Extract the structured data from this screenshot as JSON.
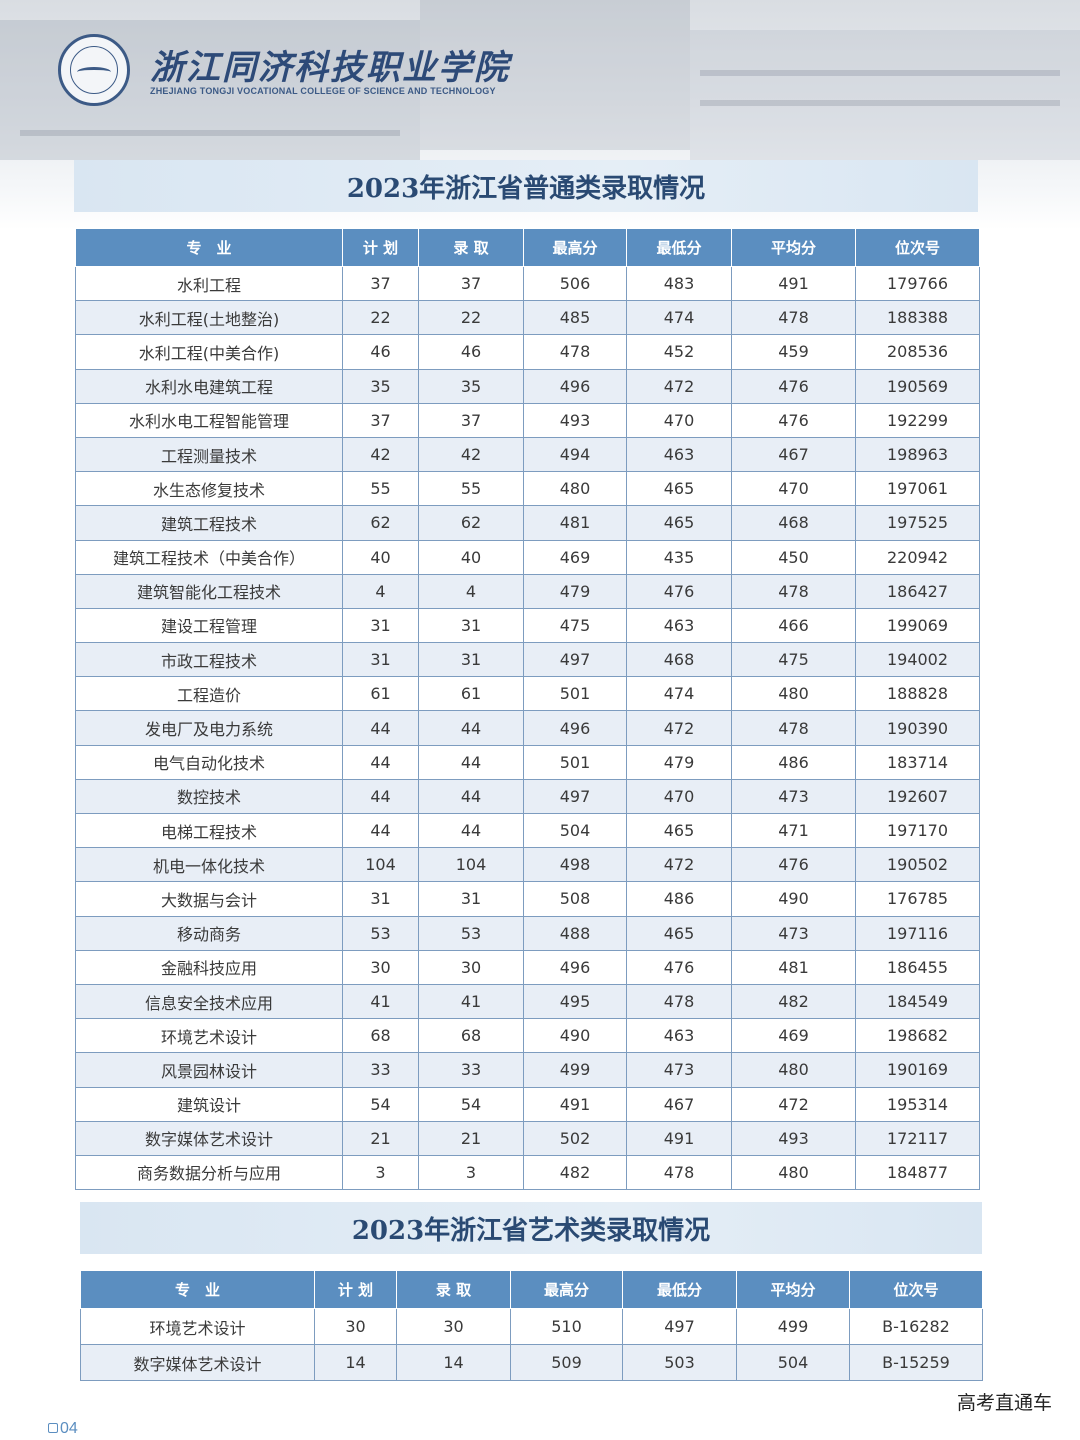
{
  "logo": {
    "name_cn": "浙江同济科技职业学院",
    "name_en": "ZHEJIANG TONGJI VOCATIONAL COLLEGE OF SCIENCE AND TECHNOLOGY"
  },
  "section1": {
    "title": "2023年浙江省普通类录取情况",
    "headers": [
      "专　业",
      "计 划",
      "录 取",
      "最高分",
      "最低分",
      "平均分",
      "位次号"
    ],
    "rows": [
      [
        "水利工程",
        "37",
        "37",
        "506",
        "483",
        "491",
        "179766"
      ],
      [
        "水利工程(土地整治)",
        "22",
        "22",
        "485",
        "474",
        "478",
        "188388"
      ],
      [
        "水利工程(中美合作)",
        "46",
        "46",
        "478",
        "452",
        "459",
        "208536"
      ],
      [
        "水利水电建筑工程",
        "35",
        "35",
        "496",
        "472",
        "476",
        "190569"
      ],
      [
        "水利水电工程智能管理",
        "37",
        "37",
        "493",
        "470",
        "476",
        "192299"
      ],
      [
        "工程测量技术",
        "42",
        "42",
        "494",
        "463",
        "467",
        "198963"
      ],
      [
        "水生态修复技术",
        "55",
        "55",
        "480",
        "465",
        "470",
        "197061"
      ],
      [
        "建筑工程技术",
        "62",
        "62",
        "481",
        "465",
        "468",
        "197525"
      ],
      [
        "建筑工程技术（中美合作）",
        "40",
        "40",
        "469",
        "435",
        "450",
        "220942"
      ],
      [
        "建筑智能化工程技术",
        "4",
        "4",
        "479",
        "476",
        "478",
        "186427"
      ],
      [
        "建设工程管理",
        "31",
        "31",
        "475",
        "463",
        "466",
        "199069"
      ],
      [
        "市政工程技术",
        "31",
        "31",
        "497",
        "468",
        "475",
        "194002"
      ],
      [
        "工程造价",
        "61",
        "61",
        "501",
        "474",
        "480",
        "188828"
      ],
      [
        "发电厂及电力系统",
        "44",
        "44",
        "496",
        "472",
        "478",
        "190390"
      ],
      [
        "电气自动化技术",
        "44",
        "44",
        "501",
        "479",
        "486",
        "183714"
      ],
      [
        "数控技术",
        "44",
        "44",
        "497",
        "470",
        "473",
        "192607"
      ],
      [
        "电梯工程技术",
        "44",
        "44",
        "504",
        "465",
        "471",
        "197170"
      ],
      [
        "机电一体化技术",
        "104",
        "104",
        "498",
        "472",
        "476",
        "190502"
      ],
      [
        "大数据与会计",
        "31",
        "31",
        "508",
        "486",
        "490",
        "176785"
      ],
      [
        "移动商务",
        "53",
        "53",
        "488",
        "465",
        "473",
        "197116"
      ],
      [
        "金融科技应用",
        "30",
        "30",
        "496",
        "476",
        "481",
        "186455"
      ],
      [
        "信息安全技术应用",
        "41",
        "41",
        "495",
        "478",
        "482",
        "184549"
      ],
      [
        "环境艺术设计",
        "68",
        "68",
        "490",
        "463",
        "469",
        "198682"
      ],
      [
        "风景园林设计",
        "33",
        "33",
        "499",
        "473",
        "480",
        "190169"
      ],
      [
        "建筑设计",
        "54",
        "54",
        "491",
        "467",
        "472",
        "195314"
      ],
      [
        "数字媒体艺术设计",
        "21",
        "21",
        "502",
        "491",
        "493",
        "172117"
      ],
      [
        "商务数据分析与应用",
        "3",
        "3",
        "482",
        "478",
        "480",
        "184877"
      ]
    ]
  },
  "section2": {
    "title": "2023年浙江省艺术类录取情况",
    "headers": [
      "专　业",
      "计 划",
      "录 取",
      "最高分",
      "最低分",
      "平均分",
      "位次号"
    ],
    "rows": [
      [
        "环境艺术设计",
        "30",
        "30",
        "510",
        "497",
        "499",
        "B-16282"
      ],
      [
        "数字媒体艺术设计",
        "14",
        "14",
        "509",
        "503",
        "504",
        "B-15259"
      ]
    ]
  },
  "footer": {
    "page_number": "04",
    "watermark": "高考直通车"
  },
  "colors": {
    "header_bg": "#5b8ec0",
    "title_text": "#2a4a73",
    "row_alt": "#e8eef6",
    "border": "#7d9cbf"
  }
}
